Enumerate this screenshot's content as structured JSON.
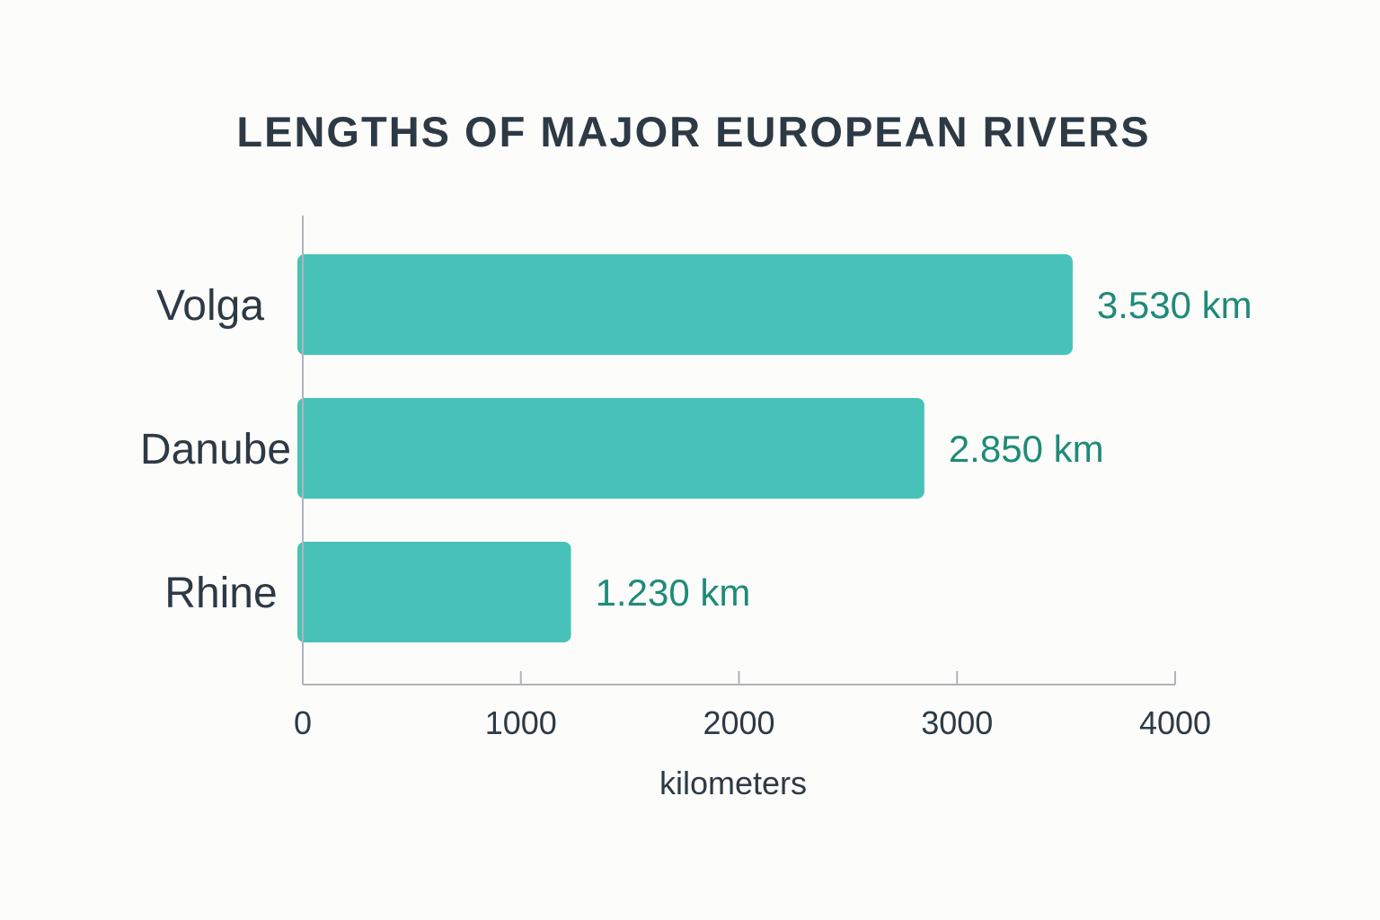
{
  "chart_data": {
    "type": "bar",
    "orientation": "horizontal",
    "title": "LENGTHS OF MAJOR EUROPEAN RIVERS",
    "xlabel": "kilometers",
    "ylabel": "",
    "categories": [
      "Volga",
      "Danube",
      "Rhine"
    ],
    "values": [
      3530,
      2850,
      1230
    ],
    "value_labels": [
      "3.530 km",
      "2.850 km",
      "1.230 km"
    ],
    "xlim": [
      0,
      4000
    ],
    "xticks": [
      0,
      1000,
      2000,
      3000,
      4000
    ],
    "xtick_labels": [
      "0",
      "1000",
      "2000",
      "3000",
      "4000"
    ],
    "grid": false,
    "colors": {
      "bar": "#48c2b8",
      "value_label": "#1f8a78",
      "text": "#2d3a45",
      "axis": "#b0b4b8",
      "background": "#fcfcfa"
    }
  }
}
